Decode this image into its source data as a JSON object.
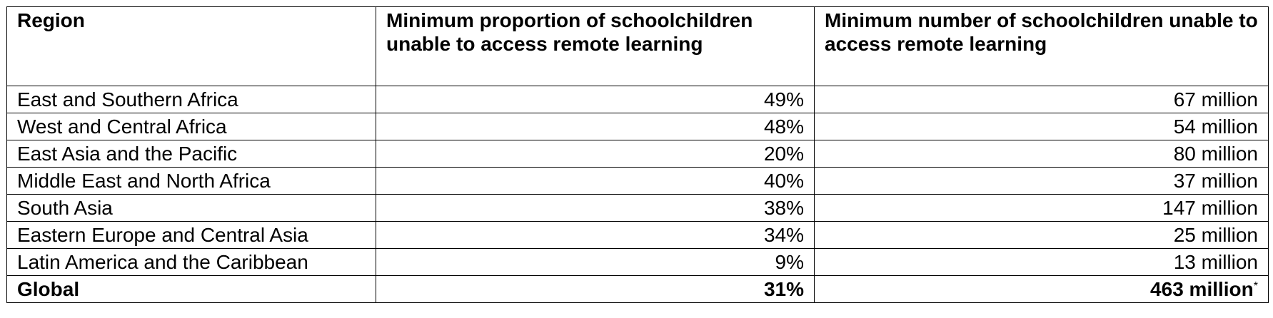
{
  "table": {
    "header": [
      "Region",
      "Minimum proportion of schoolchildren unable to access remote learning",
      "Minimum number of schoolchildren unable to access remote learning"
    ],
    "rows": [
      [
        "East and Southern Africa",
        "49%",
        "67 million"
      ],
      [
        "West and Central Africa",
        "48%",
        "54 million"
      ],
      [
        "East Asia and the Pacific",
        "20%",
        "80 million"
      ],
      [
        "Middle East and North Africa",
        "40%",
        "37 million"
      ],
      [
        "South Asia",
        "38%",
        "147 million"
      ],
      [
        "Eastern Europe and Central Asia",
        "34%",
        "25 million"
      ],
      [
        "Latin America and the Caribbean",
        "9%",
        "13 million"
      ]
    ],
    "total": {
      "cells": [
        "Global",
        "31%",
        "463 million"
      ],
      "note": "*"
    }
  }
}
